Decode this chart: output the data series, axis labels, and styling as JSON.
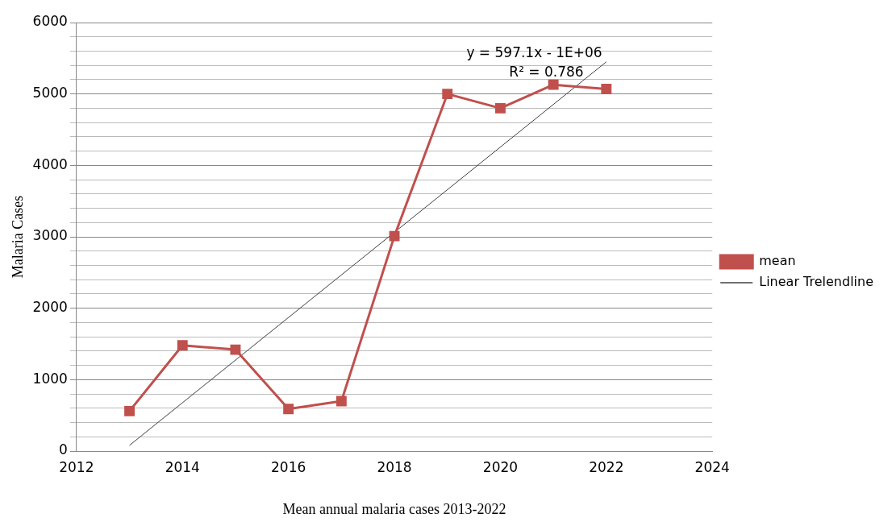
{
  "chart_data": {
    "type": "line",
    "xlabel": "Mean annual malaria cases 2013-2022",
    "ylabel": "Malaria Cases",
    "x": [
      2013,
      2014,
      2015,
      2016,
      2017,
      2018,
      2019,
      2020,
      2021,
      2022
    ],
    "series": [
      {
        "name": "mean",
        "color": "#c0504d",
        "marker": "square",
        "values": [
          560,
          1480,
          1420,
          590,
          700,
          3010,
          5000,
          4800,
          5130,
          5070
        ]
      },
      {
        "name": "Linear Trelendline",
        "type": "line",
        "color": "#404040",
        "marker": "none",
        "x": [
          2013,
          2022
        ],
        "values": [
          80,
          5450
        ]
      }
    ],
    "xlim": [
      2012,
      2024
    ],
    "xticks": [
      2012,
      2014,
      2016,
      2018,
      2020,
      2022,
      2024
    ],
    "ylim": [
      0,
      6000
    ],
    "yticks": [
      0,
      {
        "value": 200,
        "label": null
      },
      {
        "value": 400,
        "label": null
      },
      {
        "value": 600,
        "label": null
      },
      {
        "value": 800,
        "label": null
      },
      1000,
      {
        "value": 1200,
        "label": null
      },
      {
        "value": 1400,
        "label": null
      },
      {
        "value": 1600,
        "label": null
      },
      {
        "value": 1800,
        "label": null
      },
      2000,
      {
        "value": 2200,
        "label": null
      },
      {
        "value": 2400,
        "label": null
      },
      {
        "value": 2600,
        "label": null
      },
      {
        "value": 2800,
        "label": null
      },
      3000,
      {
        "value": 3200,
        "label": null
      },
      {
        "value": 3400,
        "label": null
      },
      {
        "value": 3600,
        "label": null
      },
      {
        "value": 3800,
        "label": null
      },
      4000,
      {
        "value": 4200,
        "label": null
      },
      {
        "value": 4400,
        "label": null
      },
      {
        "value": 4600,
        "label": null
      },
      {
        "value": 4800,
        "label": null
      },
      5000,
      {
        "value": 5200,
        "label": null
      },
      {
        "value": 5400,
        "label": null
      },
      {
        "value": 5600,
        "label": null
      },
      {
        "value": 5800,
        "label": null
      },
      6000
    ],
    "grid": "y",
    "legend": "right",
    "annotations": [
      "y = 597.1x - 1E+06",
      "R² = 0.786"
    ]
  }
}
